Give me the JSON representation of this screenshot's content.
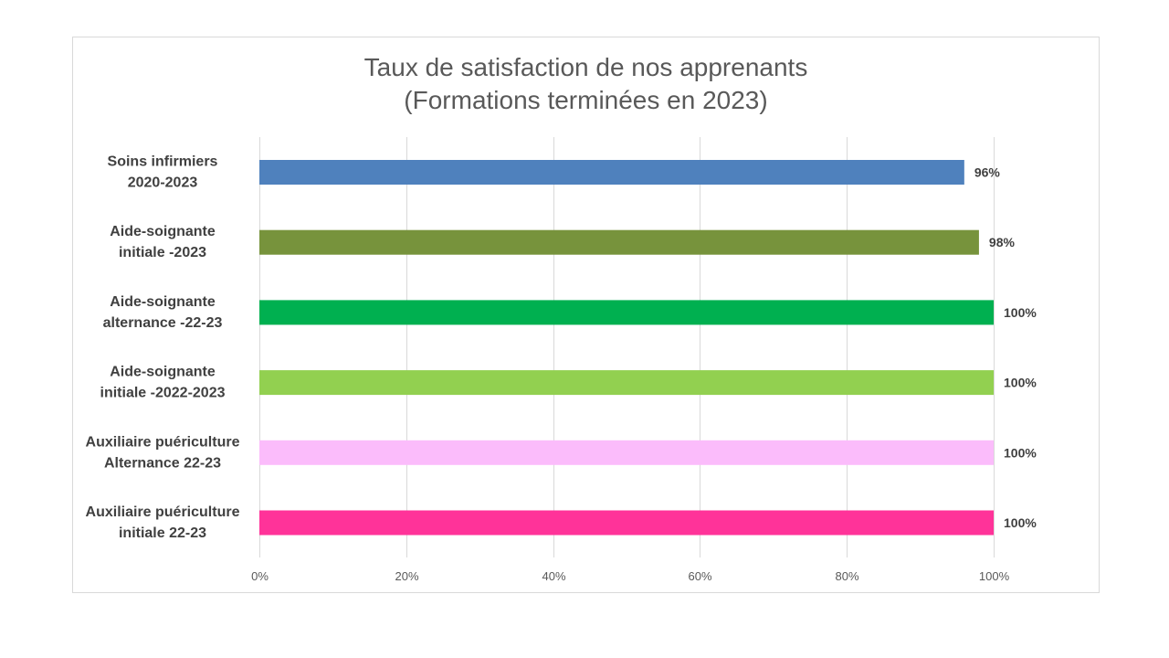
{
  "chart_data": {
    "type": "bar",
    "orientation": "horizontal",
    "title_lines": [
      "Taux de satisfaction de nos apprenants",
      "(Formations terminées en 2023)"
    ],
    "categories": [
      [
        "Soins infirmiers",
        "2020-2023"
      ],
      [
        "Aide-soignante",
        "initiale -2023"
      ],
      [
        "Aide-soignante",
        "alternance -22-23"
      ],
      [
        "Aide-soignante",
        "initiale -2022-2023"
      ],
      [
        "Auxiliaire puériculture",
        "Alternance 22-23"
      ],
      [
        "Auxiliaire puériculture",
        "initiale 22-23"
      ]
    ],
    "values": [
      96,
      98,
      100,
      100,
      100,
      100
    ],
    "data_labels": [
      "96%",
      "98%",
      "100%",
      "100%",
      "100%",
      "100%"
    ],
    "colors": [
      "#4f81bd",
      "#77933c",
      "#00b050",
      "#92d050",
      "#fbbcfb",
      "#ff3399"
    ],
    "xlim": [
      0,
      100
    ],
    "x_ticks": [
      0,
      20,
      40,
      60,
      80,
      100
    ],
    "x_tick_labels": [
      "0%",
      "20%",
      "40%",
      "60%",
      "80%",
      "100%"
    ],
    "gridlines": true,
    "legend": "none"
  }
}
